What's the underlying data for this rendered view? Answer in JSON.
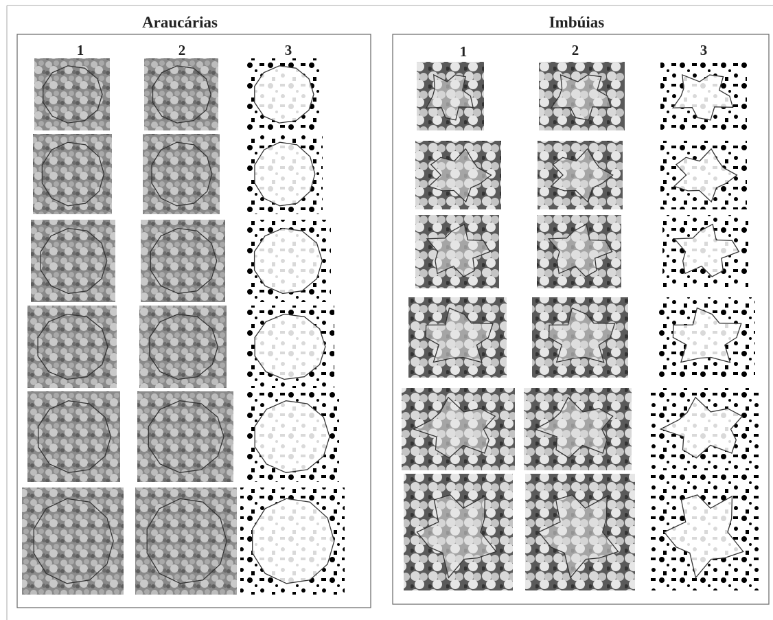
{
  "panels": [
    {
      "title": "Araucárias",
      "columns": [
        "1",
        "2",
        "3"
      ]
    },
    {
      "title": "Imbúias",
      "columns": [
        "1",
        "2",
        "3"
      ]
    }
  ]
}
